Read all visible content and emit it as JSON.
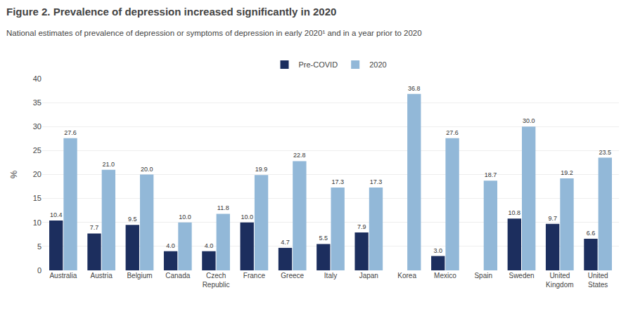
{
  "chart_data": {
    "type": "bar",
    "title": "Figure 2. Prevalence of depression increased significantly in 2020",
    "subtitle": "National estimates of prevalence of depression or symptoms of depression in early 2020¹ and in a year prior to 2020",
    "categories": [
      "Australia",
      "Austria",
      "Belgium",
      "Canada",
      "Czech\nRepublic",
      "France",
      "Greece",
      "Italy",
      "Japan",
      "Korea",
      "Mexico",
      "Spain",
      "Sweden",
      "United\nKingdom",
      "United\nStates"
    ],
    "series": [
      {
        "name": "Pre-COVID",
        "color": "#1c2e5e",
        "values": [
          10.4,
          7.7,
          9.5,
          4.0,
          4.0,
          10.0,
          4.7,
          5.5,
          7.9,
          null,
          3.0,
          null,
          10.8,
          9.7,
          6.6
        ],
        "value_labels": [
          "10.4",
          "7.7",
          "9.5",
          "4.0",
          "4.0",
          "10.0",
          "4.7",
          "5.5",
          "7.9",
          null,
          "3.0",
          null,
          "10.8",
          "9.7",
          "6.6"
        ]
      },
      {
        "name": "2020",
        "color": "#92b8d8",
        "values": [
          27.6,
          21.0,
          20.0,
          10.0,
          11.8,
          19.9,
          22.8,
          17.3,
          17.3,
          36.8,
          27.6,
          18.7,
          30.0,
          19.2,
          23.5
        ],
        "value_labels": [
          "27.6",
          "21.0",
          "20.0",
          "10.0",
          "11.8",
          "19.9",
          "22.8",
          "17.3",
          "17.3",
          "36.8",
          "27.6",
          "18.7",
          "30.0",
          "19.2",
          "23.5"
        ]
      }
    ],
    "ylabel": "%",
    "ylim": [
      0,
      40
    ],
    "yticks": [
      0,
      5,
      10,
      15,
      20,
      25,
      30,
      35,
      40
    ],
    "grid": true,
    "legend": "top",
    "data_labels": true
  }
}
